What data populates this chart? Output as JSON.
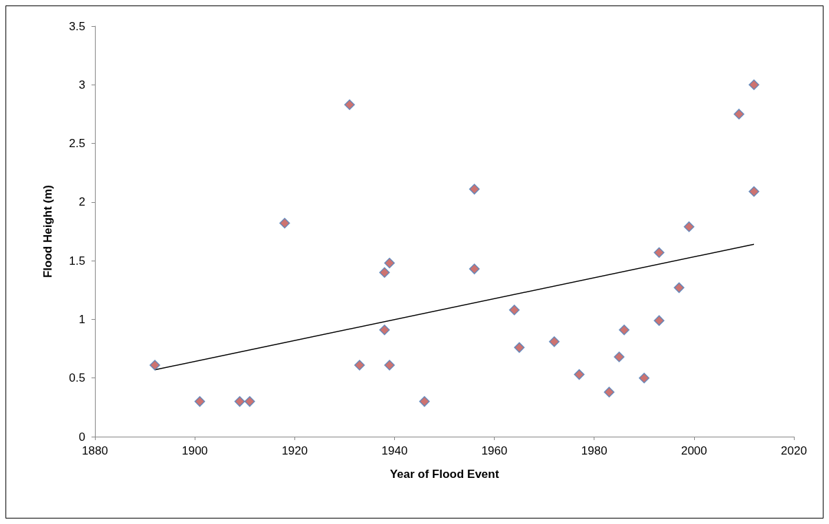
{
  "chart_data": {
    "type": "scatter",
    "xlabel": "Year of Flood Event",
    "ylabel": "Flood Height (m)",
    "xlim": [
      1880,
      2020
    ],
    "xticks": [
      1880,
      1900,
      1920,
      1940,
      1960,
      1980,
      2000,
      2020
    ],
    "ylim": [
      0,
      3.5
    ],
    "yticks": [
      0,
      0.5,
      1,
      1.5,
      2,
      2.5,
      3,
      3.5
    ],
    "grid": false,
    "series": [
      {
        "type": "scatter",
        "color": "#c0504d",
        "marker": "diamond",
        "x": [
          1892,
          1901,
          1909,
          1911,
          1918,
          1931,
          1933,
          1938,
          1939,
          1938,
          1939,
          1946,
          1956,
          1956,
          1964,
          1965,
          1972,
          1977,
          1983,
          1985,
          1986,
          1990,
          1993,
          1993,
          1997,
          1999,
          2009,
          2012,
          2012
        ],
        "values": [
          0.61,
          0.3,
          0.3,
          0.3,
          1.82,
          2.83,
          0.61,
          1.4,
          1.48,
          0.91,
          0.61,
          0.3,
          2.11,
          1.43,
          1.08,
          0.76,
          0.81,
          0.53,
          0.38,
          0.68,
          0.91,
          0.5,
          0.99,
          1.57,
          1.27,
          1.79,
          2.75,
          3.0,
          2.09
        ]
      },
      {
        "type": "line",
        "color": "#000000",
        "marker": "none",
        "line_style": "solid",
        "x": [
          1892,
          2012
        ],
        "values": [
          0.57,
          1.64
        ]
      }
    ]
  }
}
